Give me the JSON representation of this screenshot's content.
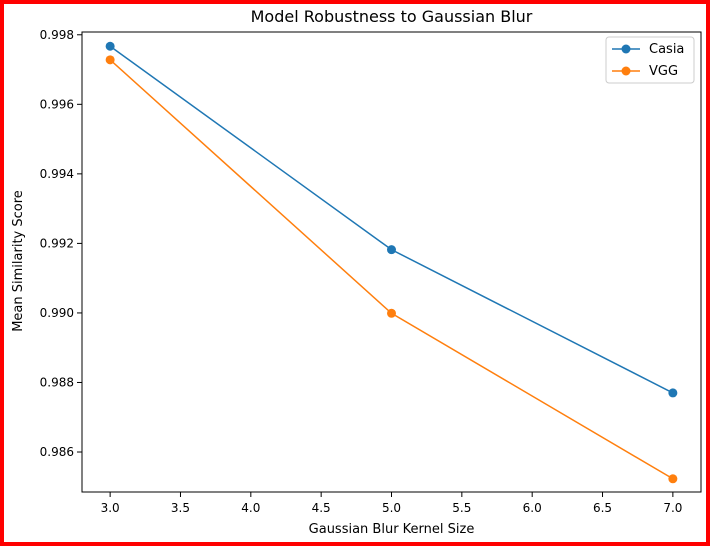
{
  "chart_data": {
    "type": "line",
    "title": "Model Robustness to Gaussian Blur",
    "xlabel": "Gaussian Blur Kernel Size",
    "ylabel": "Mean Similarity Score",
    "xlim": [
      2.8,
      7.2
    ],
    "ylim": [
      0.98485,
      0.99808
    ],
    "xticks": [
      "3.0",
      "3.5",
      "4.0",
      "4.5",
      "5.0",
      "5.5",
      "6.0",
      "6.5",
      "7.0"
    ],
    "yticks": [
      "0.986",
      "0.988",
      "0.990",
      "0.992",
      "0.994",
      "0.996",
      "0.998"
    ],
    "x": [
      3.0,
      5.0,
      7.0
    ],
    "series": [
      {
        "name": "Casia",
        "color": "#1f77b4",
        "values": [
          0.99767,
          0.99182,
          0.9877
        ]
      },
      {
        "name": "VGG",
        "color": "#ff7f0e",
        "values": [
          0.99728,
          0.98999,
          0.98523
        ]
      }
    ],
    "grid": false,
    "legend_position": "top-right",
    "marker": "circle"
  },
  "frame_color": "#ff0000"
}
